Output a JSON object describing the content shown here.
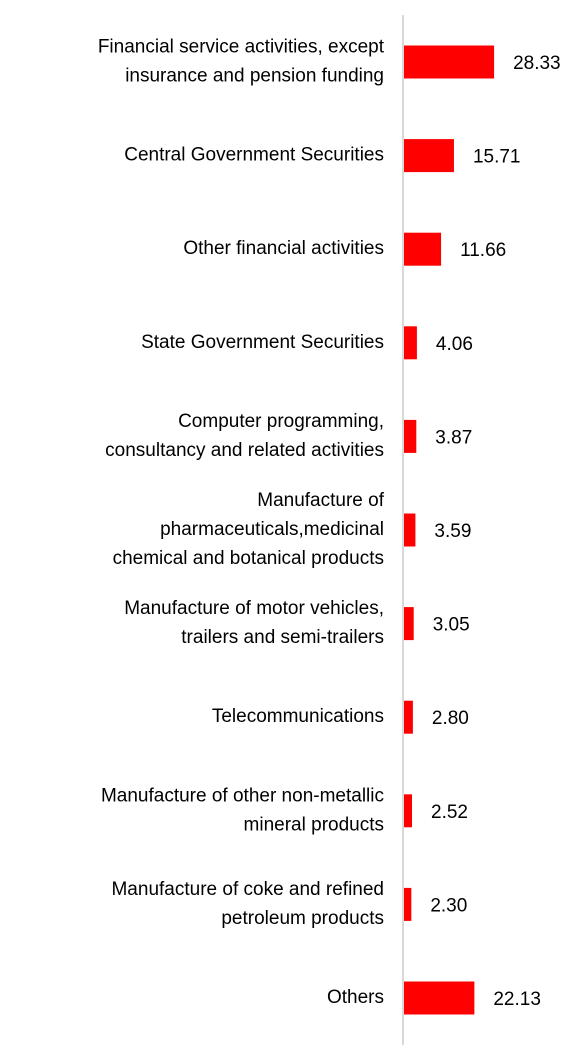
{
  "chart_data": {
    "type": "barh",
    "categories": [
      "Financial service activities, except\ninsurance and pension funding",
      "Central Government Securities",
      "Other financial activities",
      "State Government Securities",
      "Computer programming,\nconsultancy and related activities",
      "Manufacture of\npharmaceuticals,medicinal\nchemical and botanical products",
      "Manufacture of motor vehicles,\ntrailers and semi-trailers",
      "Telecommunications",
      "Manufacture of other non-metallic\nmineral products",
      "Manufacture of coke and refined\npetroleum products",
      "Others"
    ],
    "values": [
      28.33,
      15.71,
      11.66,
      4.06,
      3.87,
      3.59,
      3.05,
      2.8,
      2.52,
      2.3,
      22.13
    ],
    "value_labels": [
      "28.33",
      "15.71",
      "11.66",
      "4.06",
      "3.87",
      "3.59",
      "3.05",
      "2.80",
      "2.52",
      "2.30",
      "22.13"
    ],
    "color": "#ff0000"
  }
}
